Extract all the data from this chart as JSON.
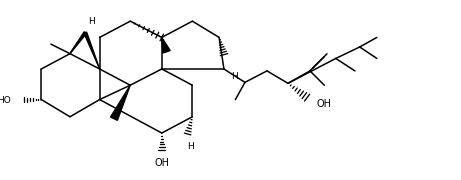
{
  "bg_color": "#ffffff",
  "line_color": "#000000",
  "lw": 1.1,
  "figsize": [
    4.61,
    1.8
  ],
  "dpi": 100,
  "xlim": [
    0,
    461
  ],
  "ylim": [
    0,
    180
  ]
}
